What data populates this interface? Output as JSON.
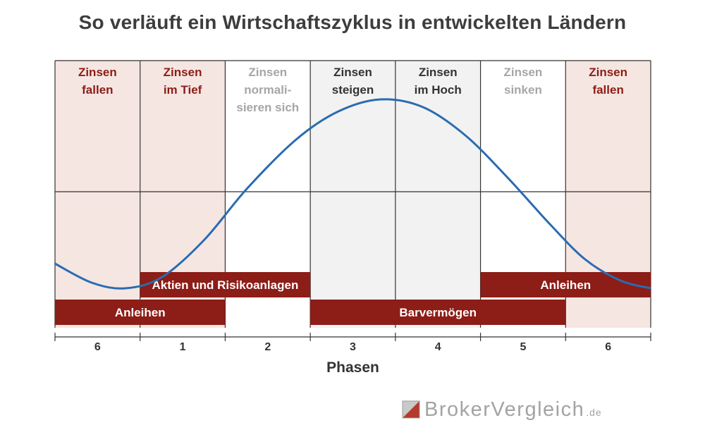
{
  "title": "So verläuft ein Wirtschaftszyklus in entwickelten Ländern",
  "phases": [
    {
      "label": "6",
      "status": [
        "Zinsen",
        "fallen"
      ],
      "tone": "falling"
    },
    {
      "label": "1",
      "status": [
        "Zinsen",
        "im Tief"
      ],
      "tone": "falling"
    },
    {
      "label": "2",
      "status": [
        "Zinsen",
        "normali-",
        "sieren sich"
      ],
      "tone": "neutral"
    },
    {
      "label": "3",
      "status": [
        "Zinsen",
        "steigen"
      ],
      "tone": "rising"
    },
    {
      "label": "4",
      "status": [
        "Zinsen",
        "im Hoch"
      ],
      "tone": "rising"
    },
    {
      "label": "5",
      "status": [
        "Zinsen",
        "sinken"
      ],
      "tone": "neutral"
    },
    {
      "label": "6",
      "status": [
        "Zinsen",
        "fallen"
      ],
      "tone": "falling"
    }
  ],
  "asset_bars": [
    {
      "label": "Aktien und Risikoanlagen",
      "start_phase": 1,
      "end_phase": 3,
      "row": 1
    },
    {
      "label": "Anleihen",
      "start_phase": 5,
      "end_phase": 7,
      "row": 1
    },
    {
      "label": "Anleihen",
      "start_phase": 0,
      "end_phase": 2,
      "row": 2
    },
    {
      "label": "Barvermögen",
      "start_phase": 3,
      "end_phase": 6,
      "row": 2
    }
  ],
  "xlabel": "Phasen",
  "brand": {
    "word": "BrokerVergleich",
    "tld": ".de"
  },
  "colors": {
    "falling_bg": "#f5e6e2",
    "rising_bg": "#f2f2f2",
    "falling_text": "#8c1d17",
    "neutral_text": "#a6a6a6",
    "rising_text": "#333333",
    "bar": "#8c1d17",
    "curve": "#2a6cb1",
    "grid": "#333333"
  }
}
